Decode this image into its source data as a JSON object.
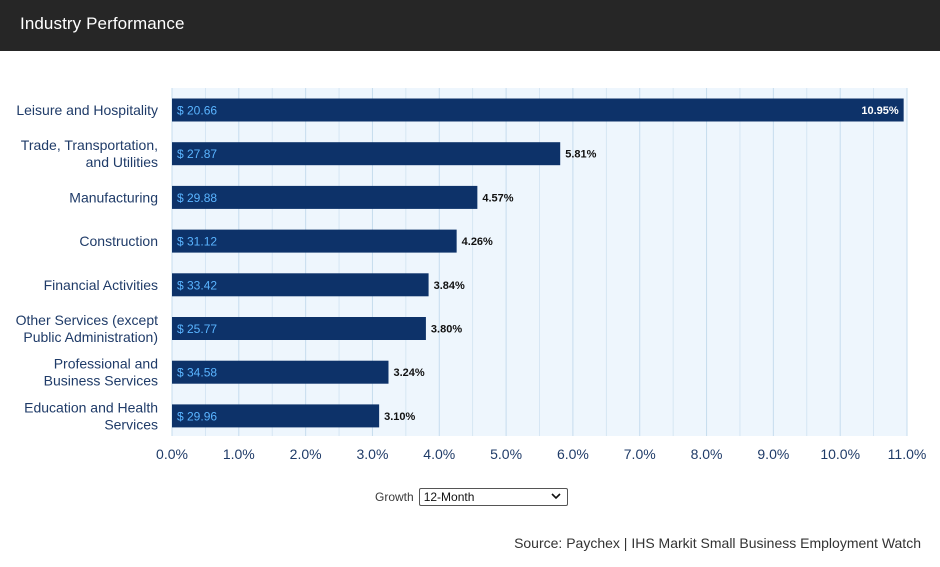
{
  "header": {
    "title": "Industry Performance"
  },
  "controls": {
    "growth_label": "Growth",
    "growth_selected": "12-Month"
  },
  "source": "Source: Paychex | IHS Markit Small Business Employment Watch",
  "colors": {
    "bar": "#0d3269",
    "bar_value_text": "#5ab4ff",
    "plot_background": "#eef6fd",
    "gridline": "#c6dcee",
    "header": "#262626"
  },
  "chart_data": {
    "type": "bar",
    "orientation": "horizontal",
    "categories": [
      [
        "Leisure and Hospitality"
      ],
      [
        "Trade, Transportation,",
        "and Utilities"
      ],
      [
        "Manufacturing"
      ],
      [
        "Construction"
      ],
      [
        "Financial Activities"
      ],
      [
        "Other Services (except",
        "Public Administration)"
      ],
      [
        "Professional and",
        "Business Services"
      ],
      [
        "Education and Health",
        "Services"
      ]
    ],
    "values": [
      10.95,
      5.81,
      4.57,
      4.26,
      3.84,
      3.8,
      3.24,
      3.1
    ],
    "value_labels": [
      "10.95%",
      "5.81%",
      "4.57%",
      "4.26%",
      "3.84%",
      "3.80%",
      "3.24%",
      "3.10%"
    ],
    "bar_labels": [
      "$ 20.66",
      "$ 27.87",
      "$ 29.88",
      "$ 31.12",
      "$ 33.42",
      "$ 25.77",
      "$ 34.58",
      "$ 29.96"
    ],
    "xlim": [
      0,
      11
    ],
    "xticks": [
      "0.0%",
      "1.0%",
      "2.0%",
      "3.0%",
      "4.0%",
      "5.0%",
      "6.0%",
      "7.0%",
      "8.0%",
      "9.0%",
      "10.0%",
      "11.0%"
    ],
    "grid": true
  }
}
